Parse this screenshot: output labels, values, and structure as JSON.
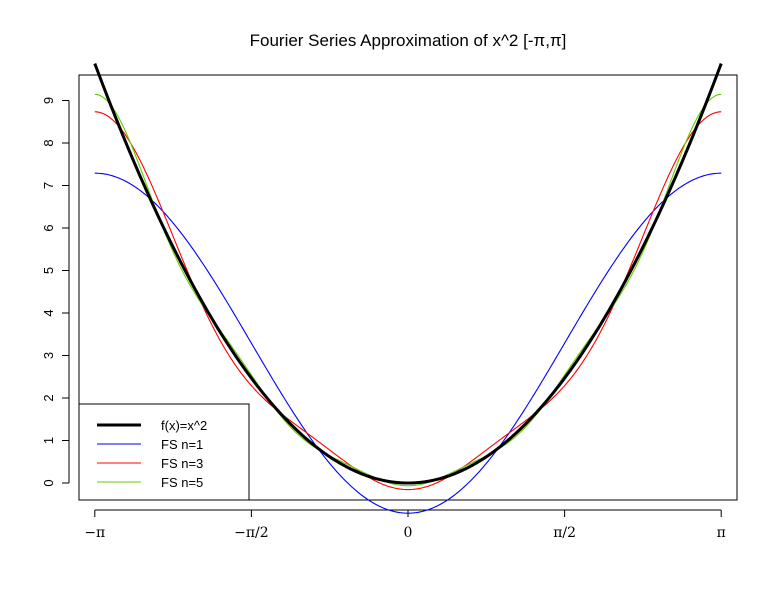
{
  "chart_data": {
    "type": "line",
    "title": "Fourier Series Approximation of x^2 [-π,π]",
    "xlabel": "",
    "ylabel": "",
    "x_range": [
      -3.14159,
      3.14159
    ],
    "xlim": [
      -3.3,
      3.3
    ],
    "ylim": [
      -0.4,
      9.6
    ],
    "x_ticks": [
      {
        "value": -3.14159,
        "label": "−π"
      },
      {
        "value": -1.5708,
        "label": "−π/2"
      },
      {
        "value": 0,
        "label": "0"
      },
      {
        "value": 1.5708,
        "label": "π/2"
      },
      {
        "value": 3.14159,
        "label": "π"
      }
    ],
    "y_ticks": [
      0,
      1,
      2,
      3,
      4,
      5,
      6,
      7,
      8,
      9
    ],
    "grid": false,
    "legend_position": "bottom-left",
    "series": [
      {
        "name": "f(x)=x^2",
        "function": "x^2",
        "color": "#000000",
        "emphasis": "thick"
      },
      {
        "name": "FS n=1",
        "terms": 1,
        "color": "#0000ff",
        "emphasis": "normal"
      },
      {
        "name": "FS n=3",
        "terms": 3,
        "color": "#ff0000",
        "emphasis": "normal"
      },
      {
        "name": "FS n=5",
        "terms": 5,
        "color": "#66cc00",
        "emphasis": "normal"
      }
    ]
  }
}
